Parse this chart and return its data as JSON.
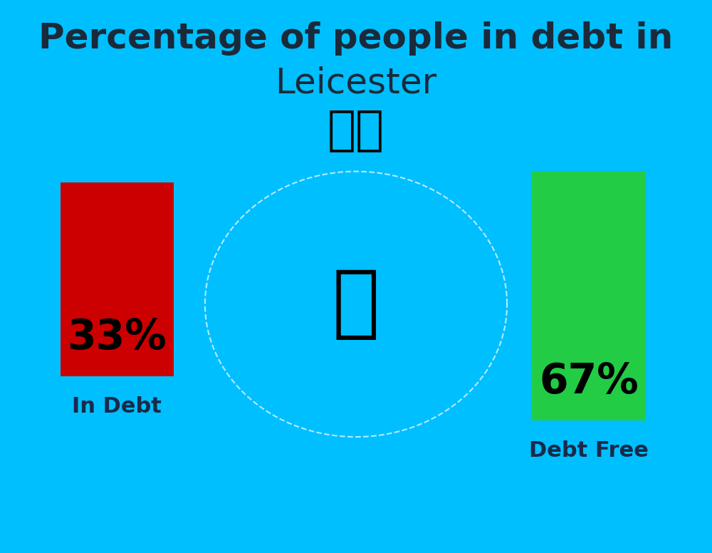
{
  "title_line1": "Percentage of people in debt in",
  "title_line2": "Leicester",
  "background_color": "#00BFFF",
  "bar1_value": 33,
  "bar1_label": "33%",
  "bar1_color": "#CC0000",
  "bar1_text_color": "#000000",
  "bar1_category": "In Debt",
  "bar2_value": 67,
  "bar2_label": "67%",
  "bar2_color": "#22CC44",
  "bar2_text_color": "#000000",
  "bar2_category": "Debt Free",
  "category_label_color": "#1a2a4a",
  "title_color": "#1a2a3a",
  "title_fontsize": 36,
  "subtitle_fontsize": 36,
  "bar_label_fontsize": 42,
  "category_fontsize": 22,
  "flag_emoji": "🇬🇧"
}
